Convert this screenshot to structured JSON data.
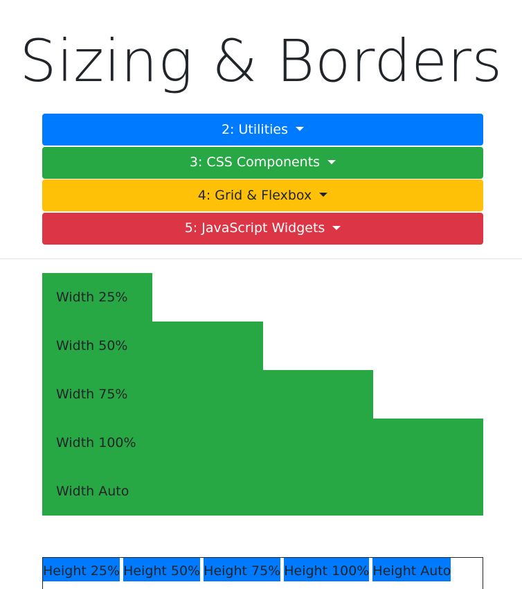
{
  "page": {
    "title": "Sizing & Borders"
  },
  "menu": {
    "buttons": [
      {
        "label": "2: Utilities",
        "bg": "#007bff",
        "fg": "#ffffff"
      },
      {
        "label": "3: CSS Components",
        "bg": "#28a745",
        "fg": "#ffffff"
      },
      {
        "label": "4: Grid & Flexbox",
        "bg": "#ffc107",
        "fg": "#212529"
      },
      {
        "label": "5: JavaScript Widgets",
        "bg": "#dc3545",
        "fg": "#ffffff"
      }
    ]
  },
  "width_demo": {
    "color": "#28a745",
    "items": [
      {
        "label": "Width 25%",
        "fraction": 0.25
      },
      {
        "label": "Width 50%",
        "fraction": 0.5
      },
      {
        "label": "Width 75%",
        "fraction": 0.75
      },
      {
        "label": "Width 100%",
        "fraction": 1.0
      },
      {
        "label": "Width Auto",
        "fraction": 1.0
      }
    ]
  },
  "height_demo": {
    "color": "#007bff",
    "items": [
      {
        "label": "Height 25%"
      },
      {
        "label": "Height 50%"
      },
      {
        "label": "Height 75%"
      },
      {
        "label": "Height 100%"
      },
      {
        "label": "Height Auto"
      }
    ]
  }
}
